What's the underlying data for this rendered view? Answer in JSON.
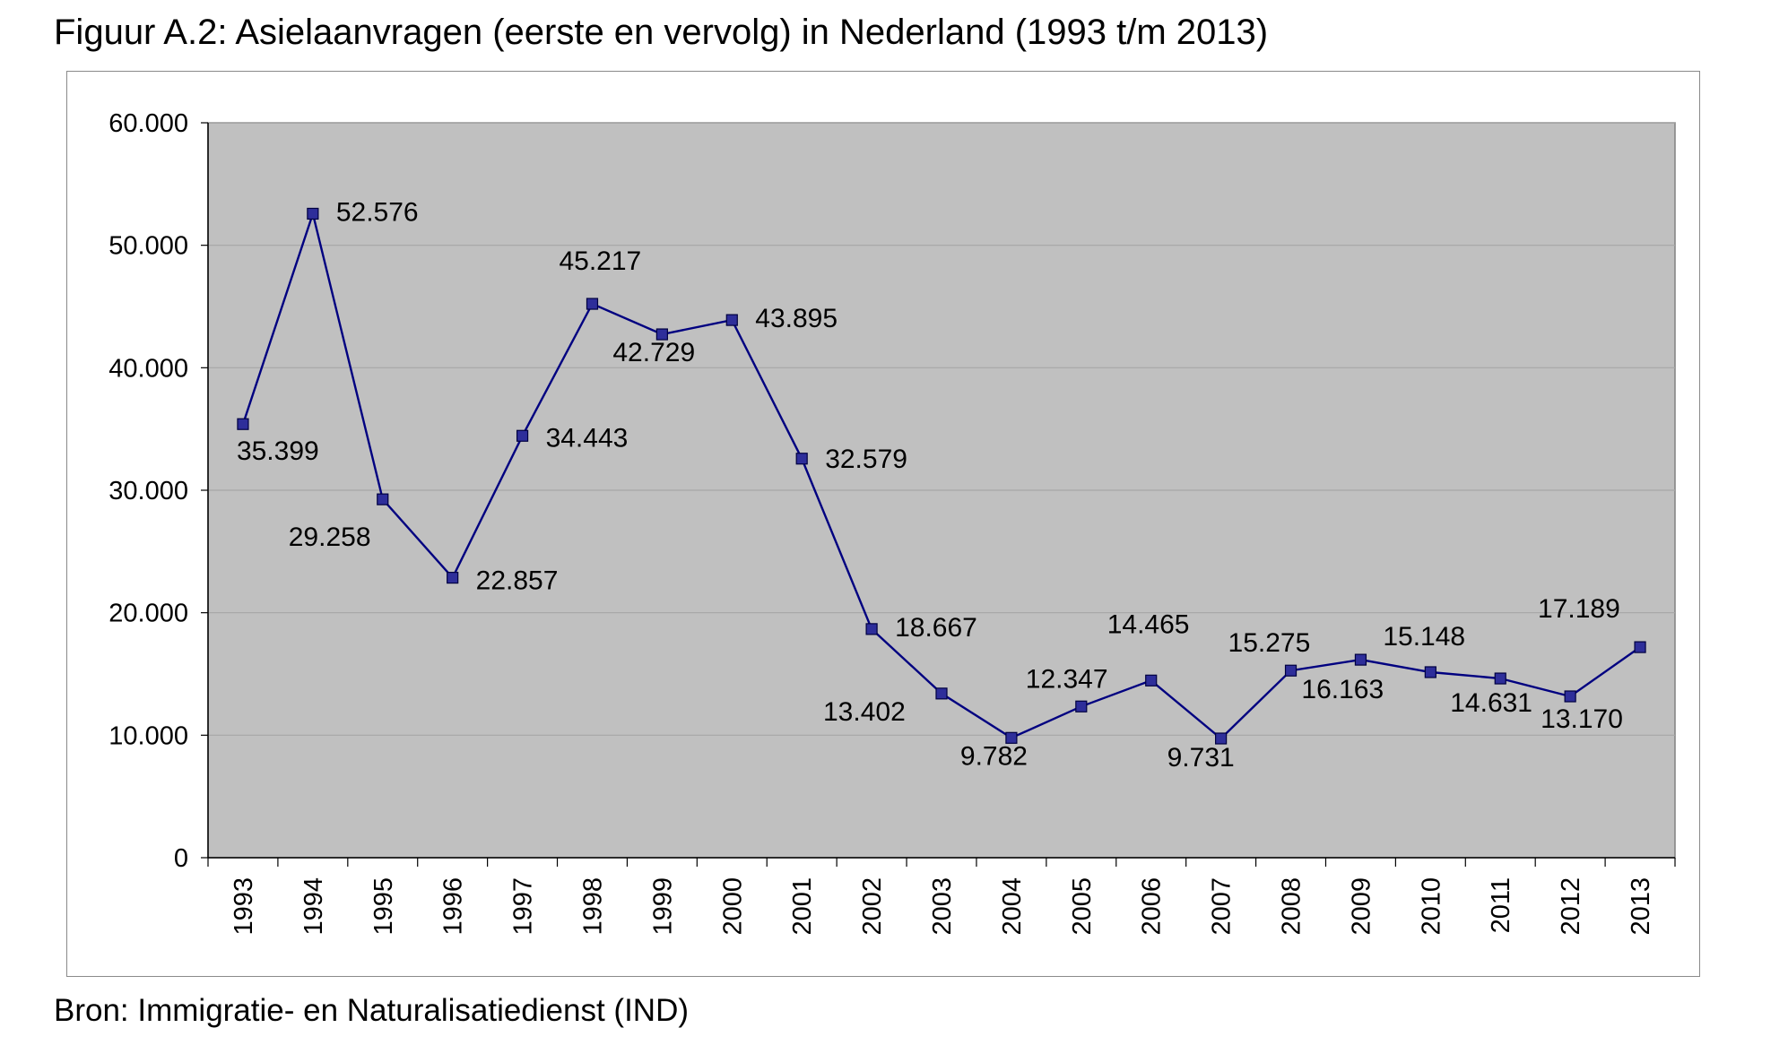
{
  "title": "Figuur A.2: Asielaanvragen (eerste en vervolg) in Nederland (1993 t/m 2013)",
  "source": "Bron: Immigratie- en Naturalisatiedienst (IND)",
  "colors": {
    "plot_area": "#c0c0c0",
    "line": "#000080",
    "marker": "#2e2e9a",
    "grid": "#a6a6a6"
  },
  "chart_data": {
    "type": "line",
    "title": "Figuur A.2: Asielaanvragen (eerste en vervolg) in Nederland (1993 t/m 2013)",
    "xlabel": "",
    "ylabel": "",
    "ylim": [
      0,
      60000
    ],
    "grid": true,
    "legend": "none",
    "categories": [
      "1993",
      "1994",
      "1995",
      "1996",
      "1997",
      "1998",
      "1999",
      "2000",
      "2001",
      "2002",
      "2003",
      "2004",
      "2005",
      "2006",
      "2007",
      "2008",
      "2009",
      "2010",
      "2011",
      "2012",
      "2013"
    ],
    "yticks": [
      0,
      10000,
      20000,
      30000,
      40000,
      50000,
      60000
    ],
    "ytick_labels": [
      "0",
      "10.000",
      "20.000",
      "30.000",
      "40.000",
      "50.000",
      "60.000"
    ],
    "series": [
      {
        "values": [
          35399,
          52576,
          29258,
          22857,
          34443,
          45217,
          42729,
          43895,
          32579,
          18667,
          13402,
          9782,
          12347,
          14465,
          9731,
          15275,
          16163,
          15148,
          14631,
          13170,
          17189
        ],
        "labels": [
          "35.399",
          "52.576",
          "29.258",
          "22.857",
          "34.443",
          "45.217",
          "42.729",
          "43.895",
          "32.579",
          "18.667",
          "13.402",
          "9.782",
          "12.347",
          "14.465",
          "9.731",
          "15.275",
          "16.163",
          "15.148",
          "14.631",
          "13.170",
          "17.189"
        ]
      }
    ]
  }
}
